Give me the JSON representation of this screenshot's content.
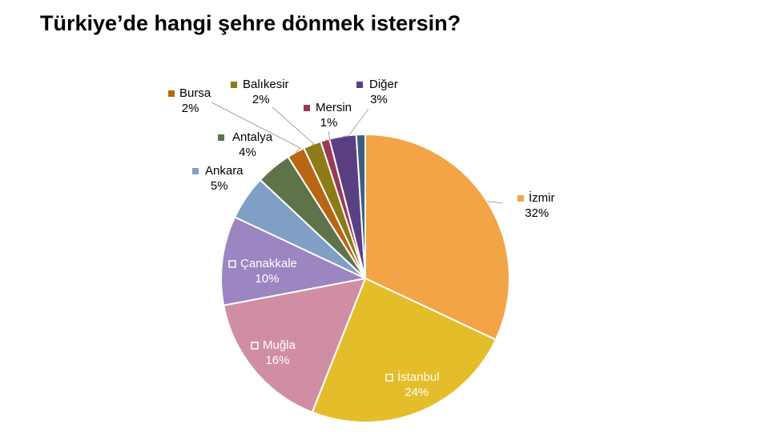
{
  "title": "Türkiye’de hangi şehre dönmek istersin?",
  "chart_data": {
    "type": "pie",
    "title": "Türkiye’de hangi şehre dönmek istersin?",
    "slices": [
      {
        "label": "İzmir",
        "value": 32,
        "display": "32%",
        "color": "#F2A446"
      },
      {
        "label": "İstanbul",
        "value": 24,
        "display": "24%",
        "color": "#E4BD2A"
      },
      {
        "label": "Muğla",
        "value": 16,
        "display": "16%",
        "color": "#D08EA4"
      },
      {
        "label": "Çanakkale",
        "value": 10,
        "display": "10%",
        "color": "#9C86C1"
      },
      {
        "label": "Ankara",
        "value": 5,
        "display": "5%",
        "color": "#7F9FC6"
      },
      {
        "label": "Antalya",
        "value": 4,
        "display": "4%",
        "color": "#5E734A"
      },
      {
        "label": "Bursa",
        "value": 2,
        "display": "2%",
        "color": "#B86514"
      },
      {
        "label": "Balıkesir",
        "value": 2,
        "display": "2%",
        "color": "#8E7A16"
      },
      {
        "label": "Mersin",
        "value": 1,
        "display": "1%",
        "color": "#9A3A56"
      },
      {
        "label": "Diğer",
        "value": 3,
        "display": "3%",
        "color": "#5A3F82"
      },
      {
        "label": "",
        "value": 1,
        "display": "",
        "color": "#3F5E7F"
      }
    ],
    "legend": "none"
  }
}
